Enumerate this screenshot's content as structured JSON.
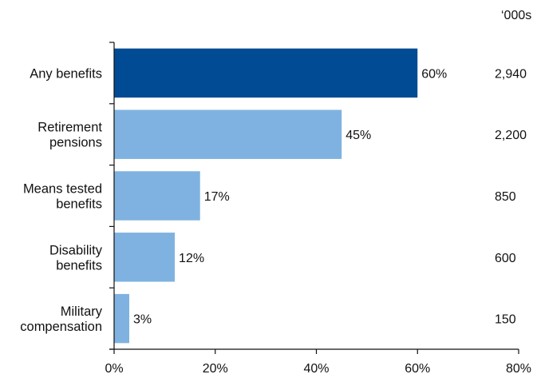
{
  "chart_data": {
    "type": "bar",
    "orientation": "horizontal",
    "unit_label": "‘000s",
    "categories": [
      [
        "Any benefits"
      ],
      [
        "Retirement",
        "pensions"
      ],
      [
        "Means tested",
        "benefits"
      ],
      [
        "Disability",
        "benefits"
      ],
      [
        "Military",
        "compensation"
      ]
    ],
    "values": [
      60,
      45,
      17,
      12,
      3
    ],
    "value_labels": [
      "60%",
      "45%",
      "17%",
      "12%",
      "3%"
    ],
    "counts": [
      "2,940",
      "2,200",
      "850",
      "600",
      "150"
    ],
    "xlim": [
      0,
      80
    ],
    "xticks": [
      0,
      20,
      40,
      60,
      80
    ],
    "xtick_labels": [
      "0%",
      "20%",
      "40%",
      "60%",
      "80%"
    ],
    "colors": [
      "#004b93",
      "#7fb2e0",
      "#7fb2e0",
      "#7fb2e0",
      "#7fb2e0"
    ],
    "grid": false,
    "legend": "none"
  }
}
